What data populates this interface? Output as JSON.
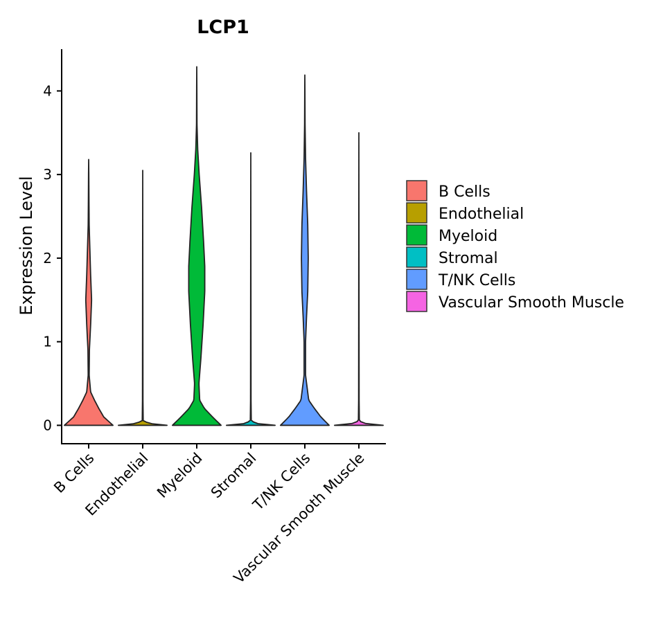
{
  "chart_data": {
    "type": "violin",
    "title": "LCP1",
    "xlabel": "",
    "ylabel": "Expression Level",
    "ylim": [
      -0.22,
      4.5
    ],
    "yticks": [
      0,
      1,
      2,
      3,
      4
    ],
    "categories": [
      "B Cells",
      "Endothelial",
      "Myeloid",
      "Stromal",
      "T/NK Cells",
      "Vascular Smooth Muscle"
    ],
    "legend": {
      "position": "right",
      "entries": [
        "B Cells",
        "Endothelial",
        "Myeloid",
        "Stromal",
        "T/NK Cells",
        "Vascular Smooth Muscle"
      ]
    },
    "series": [
      {
        "name": "B Cells",
        "color": "#F8766D",
        "max": 3.18,
        "density": [
          [
            0,
            1.0
          ],
          [
            0.1,
            0.62
          ],
          [
            0.2,
            0.42
          ],
          [
            0.3,
            0.24
          ],
          [
            0.4,
            0.08
          ],
          [
            0.6,
            0.02
          ],
          [
            0.9,
            0.03
          ],
          [
            1.2,
            0.08
          ],
          [
            1.5,
            0.12
          ],
          [
            1.8,
            0.08
          ],
          [
            2.1,
            0.05
          ],
          [
            2.4,
            0.02
          ],
          [
            2.7,
            0.012
          ],
          [
            3.0,
            0.006
          ],
          [
            3.18,
            0.0
          ]
        ]
      },
      {
        "name": "Endothelial",
        "color": "#B79F00",
        "max": 3.05,
        "density": [
          [
            0,
            1.0
          ],
          [
            0.02,
            0.35
          ],
          [
            0.05,
            0.02
          ],
          [
            0.3,
            0.01
          ],
          [
            3.05,
            0.0
          ]
        ]
      },
      {
        "name": "Myeloid",
        "color": "#00BA38",
        "max": 4.29,
        "density": [
          [
            0,
            1.0
          ],
          [
            0.1,
            0.65
          ],
          [
            0.2,
            0.32
          ],
          [
            0.3,
            0.12
          ],
          [
            0.5,
            0.09
          ],
          [
            0.8,
            0.17
          ],
          [
            1.2,
            0.26
          ],
          [
            1.6,
            0.33
          ],
          [
            1.9,
            0.33
          ],
          [
            2.2,
            0.28
          ],
          [
            2.6,
            0.2
          ],
          [
            3.0,
            0.1
          ],
          [
            3.3,
            0.04
          ],
          [
            3.6,
            0.01
          ],
          [
            4.0,
            0.005
          ],
          [
            4.29,
            0.0
          ]
        ]
      },
      {
        "name": "Stromal",
        "color": "#00BFC4",
        "max": 3.26,
        "density": [
          [
            0,
            1.0
          ],
          [
            0.02,
            0.3
          ],
          [
            0.05,
            0.02
          ],
          [
            0.3,
            0.01
          ],
          [
            3.26,
            0.0
          ]
        ]
      },
      {
        "name": "T/NK Cells",
        "color": "#619CFF",
        "max": 4.19,
        "density": [
          [
            0,
            1.0
          ],
          [
            0.1,
            0.66
          ],
          [
            0.2,
            0.4
          ],
          [
            0.3,
            0.16
          ],
          [
            0.6,
            0.03
          ],
          [
            1.0,
            0.03
          ],
          [
            1.3,
            0.07
          ],
          [
            1.6,
            0.12
          ],
          [
            2.0,
            0.14
          ],
          [
            2.4,
            0.12
          ],
          [
            2.8,
            0.07
          ],
          [
            3.2,
            0.03
          ],
          [
            3.6,
            0.01
          ],
          [
            4.0,
            0.004
          ],
          [
            4.19,
            0.0
          ]
        ]
      },
      {
        "name": "Vascular Smooth Muscle",
        "color": "#F564E3",
        "max": 3.5,
        "density": [
          [
            0,
            1.0
          ],
          [
            0.02,
            0.3
          ],
          [
            0.05,
            0.02
          ],
          [
            0.3,
            0.01
          ],
          [
            3.5,
            0.0
          ]
        ]
      }
    ]
  }
}
